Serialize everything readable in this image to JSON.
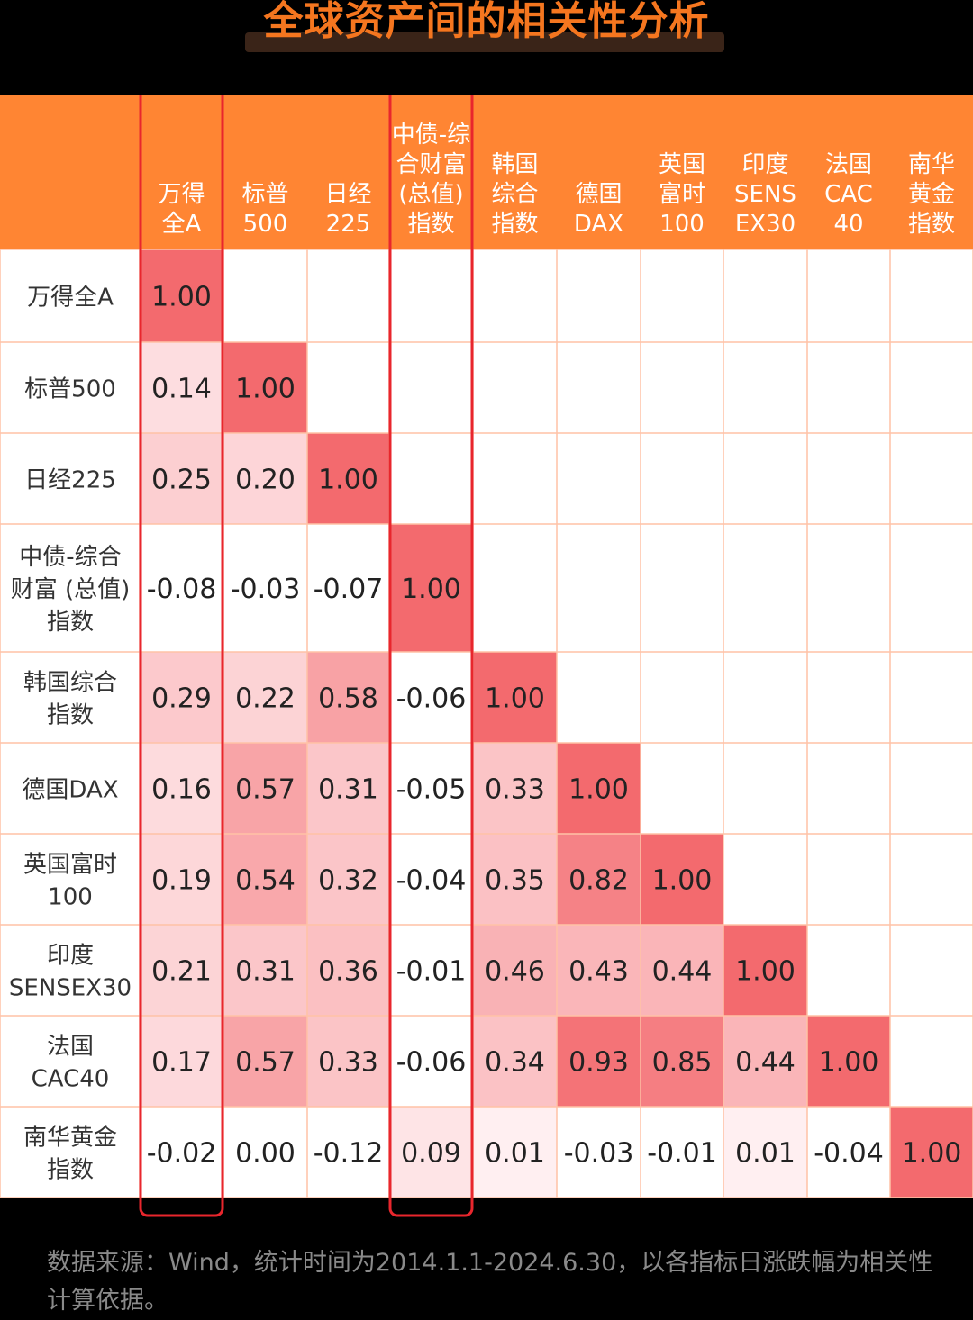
{
  "title": "全球资产间的相关性分析",
  "footnote": "数据来源：Wind，统计时间为2014.1.1-2024.6.30，以各指标日涨跌幅为相关性计算依据。",
  "colors": {
    "header_bg": "#ff8533",
    "title": "#f5761f",
    "highlight_border": "#e8262d",
    "diagonal": "#f36a6e",
    "grid_line": "#ffc2a6"
  },
  "chart_data": {
    "type": "heatmap",
    "title": "全球资产间的相关性分析",
    "columns": [
      [
        "万得",
        "全A"
      ],
      [
        "标普",
        "500"
      ],
      [
        "日经",
        "225"
      ],
      [
        "中债-综",
        "合财富",
        "(总值)",
        "指数"
      ],
      [
        "韩国",
        "综合",
        "指数"
      ],
      [
        "德国",
        "DAX"
      ],
      [
        "英国",
        "富时",
        "100"
      ],
      [
        "印度",
        "SENS",
        "EX30"
      ],
      [
        "法国",
        "CAC",
        "40"
      ],
      [
        "南华",
        "黄金",
        "指数"
      ]
    ],
    "rows": [
      [
        "万得全A"
      ],
      [
        "标普500"
      ],
      [
        "日经225"
      ],
      [
        "中债-综合",
        "财富 (总值)",
        "指数"
      ],
      [
        "韩国综合",
        "指数"
      ],
      [
        "德国DAX"
      ],
      [
        "英国富时",
        "100"
      ],
      [
        "印度",
        "SENSEX30"
      ],
      [
        "法国",
        "CAC40"
      ],
      [
        "南华黄金",
        "指数"
      ]
    ],
    "values": [
      [
        "1.00"
      ],
      [
        "0.14",
        "1.00"
      ],
      [
        "0.25",
        "0.20",
        "1.00"
      ],
      [
        "-0.08",
        "-0.03",
        "-0.07",
        "1.00"
      ],
      [
        "0.29",
        "0.22",
        "0.58",
        "-0.06",
        "1.00"
      ],
      [
        "0.16",
        "0.57",
        "0.31",
        "-0.05",
        "0.33",
        "1.00"
      ],
      [
        "0.19",
        "0.54",
        "0.32",
        "-0.04",
        "0.35",
        "0.82",
        "1.00"
      ],
      [
        "0.21",
        "0.31",
        "0.36",
        "-0.01",
        "0.46",
        "0.43",
        "0.44",
        "1.00"
      ],
      [
        "0.17",
        "0.57",
        "0.33",
        "-0.06",
        "0.34",
        "0.93",
        "0.85",
        "0.44",
        "1.00"
      ],
      [
        "-0.02",
        "0.00",
        "-0.12",
        "0.09",
        "0.01",
        "-0.03",
        "-0.01",
        "0.01",
        "-0.04",
        "1.00"
      ]
    ],
    "highlighted_columns": [
      0,
      3
    ]
  }
}
